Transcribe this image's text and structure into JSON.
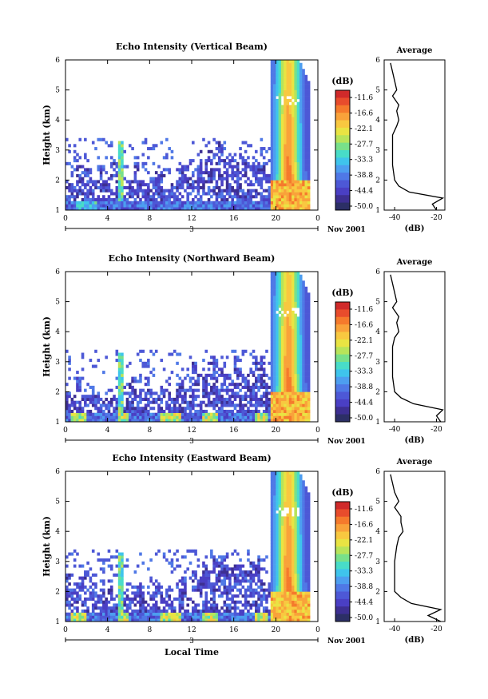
{
  "colorbar": {
    "unit_label": "(dB)",
    "ticks": [
      "-11.6",
      "-16.6",
      "-22.1",
      "-27.7",
      "-33.3",
      "-38.8",
      "-44.4",
      "-50.0"
    ],
    "colors": [
      "#d02a2a",
      "#e84c2c",
      "#f57a2c",
      "#f9a23a",
      "#f8c840",
      "#e9e443",
      "#b8e45a",
      "#78e08a",
      "#48dcc8",
      "#3fc4ec",
      "#4d9ef0",
      "#4f78e6",
      "#4d58d6",
      "#4a3fc4",
      "#3d2f92",
      "#2c2f66"
    ],
    "scale": [
      -52.0,
      -9.0
    ]
  },
  "xaxis": {
    "ticks": [
      "0",
      "4",
      "8",
      "12",
      "16",
      "20",
      "0"
    ],
    "day_label": "3",
    "date_label_1": "Nov 2001",
    "date_label_2": "Nov 2001",
    "date_label_3": "Nov 2001",
    "xlabel": "Local Time",
    "range_hours": [
      0,
      24
    ]
  },
  "yaxis": {
    "label": "Height (km)",
    "ticks": [
      "1",
      "2",
      "3",
      "4",
      "5",
      "6"
    ],
    "range_km": [
      1,
      6
    ]
  },
  "profile": {
    "title": "Average",
    "xlabel": "(dB)",
    "ticks": [
      "-40",
      "-20"
    ],
    "range_db": [
      -45,
      -16
    ]
  },
  "chart_data": [
    {
      "type": "heatmap",
      "title": "Echo Intensity (Vertical Beam)",
      "ylabel": "Height (km)",
      "xlabel": "",
      "x_range_hours": [
        0,
        24
      ],
      "y_range_km": [
        1,
        6
      ],
      "z_range_db": [
        -50.0,
        -11.6
      ],
      "average_profile": {
        "title": "Average",
        "xlabel": "(dB)",
        "height_km": [
          1.0,
          1.2,
          1.4,
          1.6,
          1.8,
          2.0,
          2.5,
          3.0,
          3.5,
          3.8,
          4.0,
          4.3,
          4.5,
          4.8,
          5.0,
          5.3,
          5.6,
          5.9
        ],
        "value_db": [
          -20,
          -22,
          -17,
          -33,
          -38,
          -40,
          -41,
          -41,
          -41,
          -39,
          -38,
          -39,
          -38,
          -41,
          -39,
          -40,
          -41,
          -42
        ]
      }
    },
    {
      "type": "heatmap",
      "title": "Echo Intensity (Northward Beam)",
      "ylabel": "Height (km)",
      "xlabel": "",
      "x_range_hours": [
        0,
        24
      ],
      "y_range_km": [
        1,
        6
      ],
      "z_range_db": [
        -50.0,
        -11.6
      ],
      "average_profile": {
        "title": "Average",
        "xlabel": "(dB)",
        "height_km": [
          1.0,
          1.2,
          1.4,
          1.6,
          1.8,
          2.0,
          2.5,
          3.0,
          3.5,
          3.8,
          4.0,
          4.3,
          4.5,
          4.8,
          5.0,
          5.3,
          5.6,
          5.9
        ],
        "value_db": [
          -18,
          -20,
          -17,
          -31,
          -37,
          -40,
          -41,
          -41,
          -41,
          -40,
          -38,
          -39,
          -38,
          -41,
          -39,
          -40,
          -41,
          -42
        ]
      }
    },
    {
      "type": "heatmap",
      "title": "Echo Intensity (Eastward Beam)",
      "ylabel": "Height (km)",
      "xlabel": "Local Time",
      "x_range_hours": [
        0,
        24
      ],
      "y_range_km": [
        1,
        6
      ],
      "z_range_db": [
        -50.0,
        -11.6
      ],
      "average_profile": {
        "title": "Average",
        "xlabel": "(dB)",
        "height_km": [
          1.0,
          1.2,
          1.4,
          1.6,
          1.8,
          2.0,
          2.5,
          3.0,
          3.5,
          3.8,
          4.0,
          4.3,
          4.5,
          4.8,
          5.0,
          5.3,
          5.6,
          5.9
        ],
        "value_db": [
          -18,
          -24,
          -18,
          -32,
          -37,
          -40,
          -40,
          -40,
          -39,
          -38,
          -36,
          -37,
          -37,
          -40,
          -38,
          -40,
          -41,
          -42
        ]
      }
    }
  ]
}
